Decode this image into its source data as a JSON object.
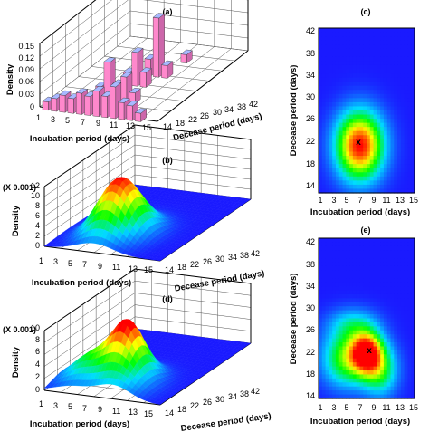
{
  "panels": {
    "a": {
      "title": "(a)",
      "ylabel": "Density",
      "xlabel": "Incubation period (days)",
      "zlabel": "Decease period (days)",
      "yticks": [
        "0",
        "0.03",
        "0.06",
        "0.09",
        "0.12",
        "0.15"
      ],
      "xticks": [
        "1",
        "3",
        "5",
        "7",
        "9",
        "11",
        "13",
        "15"
      ],
      "zticks": [
        "14",
        "18",
        "22",
        "26",
        "30",
        "34",
        "38",
        "42"
      ]
    },
    "b": {
      "title": "(b)",
      "scale": "(X 0.001)",
      "ylabel": "Density",
      "xlabel": "Incubation period (days)",
      "zlabel": "Decease period (days)",
      "yticks": [
        "0",
        "2",
        "4",
        "6",
        "8",
        "10",
        "12"
      ],
      "xticks": [
        "1",
        "3",
        "5",
        "7",
        "9",
        "11",
        "13",
        "15"
      ],
      "zticks": [
        "14",
        "18",
        "22",
        "26",
        "30",
        "34",
        "38",
        "42"
      ]
    },
    "c": {
      "title": "(c)",
      "xlabel": "Incubation period (days)",
      "ylabel": "Decease period (days)",
      "xticks": [
        "1",
        "3",
        "5",
        "7",
        "9",
        "11",
        "13",
        "15"
      ],
      "yticks": [
        "14",
        "18",
        "22",
        "26",
        "30",
        "34",
        "38",
        "42"
      ],
      "marker": "x"
    },
    "d": {
      "title": "(d)",
      "scale": "(X 0.001)",
      "ylabel": "Density",
      "xlabel": "Incubation period (days)",
      "zlabel": "Decease period (days)",
      "yticks": [
        "0",
        "2",
        "4",
        "6",
        "8",
        "10"
      ],
      "xticks": [
        "1",
        "3",
        "5",
        "7",
        "9",
        "11",
        "13",
        "15"
      ],
      "zticks": [
        "14",
        "18",
        "22",
        "26",
        "30",
        "34",
        "38",
        "42"
      ]
    },
    "e": {
      "title": "(e)",
      "xlabel": "Incubation period (days)",
      "ylabel": "Decease period (days)",
      "xticks": [
        "1",
        "3",
        "5",
        "7",
        "9",
        "11",
        "13",
        "15"
      ],
      "yticks": [
        "14",
        "18",
        "22",
        "26",
        "30",
        "34",
        "38",
        "42"
      ],
      "marker": "x"
    }
  },
  "colors": {
    "heat_low": "#1a1aff",
    "heat_mid": "#00ff00",
    "heat_high": "#ff0000",
    "bar_top": "#a8b8ff",
    "bar_side": "#ff88cc"
  },
  "chart_data": [
    {
      "type": "bar",
      "panel": "a",
      "title": "",
      "xlabel": "Incubation period (days)",
      "ylabel": "Density",
      "zlabel": "Decease period (days)",
      "ylim": [
        0,
        0.15
      ],
      "bars": [
        {
          "incubation": 2,
          "decease": 14,
          "density": 0.02
        },
        {
          "incubation": 3,
          "decease": 14,
          "density": 0.03
        },
        {
          "incubation": 4,
          "decease": 14,
          "density": 0.04
        },
        {
          "incubation": 5,
          "decease": 14,
          "density": 0.035
        },
        {
          "incubation": 6,
          "decease": 14,
          "density": 0.05
        },
        {
          "incubation": 7,
          "decease": 14,
          "density": 0.045
        },
        {
          "incubation": 8,
          "decease": 14,
          "density": 0.06
        },
        {
          "incubation": 9,
          "decease": 14,
          "density": 0.05
        },
        {
          "incubation": 10,
          "decease": 14,
          "density": 0.075
        },
        {
          "incubation": 11,
          "decease": 14,
          "density": 0.04
        },
        {
          "incubation": 12,
          "decease": 14,
          "density": 0.035
        },
        {
          "incubation": 13,
          "decease": 14,
          "density": 0.02
        },
        {
          "incubation": 6,
          "decease": 20,
          "density": 0.03
        },
        {
          "incubation": 7,
          "decease": 20,
          "density": 0.09
        },
        {
          "incubation": 8,
          "decease": 20,
          "density": 0.04
        },
        {
          "incubation": 9,
          "decease": 20,
          "density": 0.06
        },
        {
          "incubation": 10,
          "decease": 20,
          "density": 0.025
        },
        {
          "incubation": 7,
          "decease": 26,
          "density": 0.03
        },
        {
          "incubation": 8,
          "decease": 26,
          "density": 0.08
        },
        {
          "incubation": 9,
          "decease": 26,
          "density": 0.035
        },
        {
          "incubation": 8,
          "decease": 30,
          "density": 0.04
        },
        {
          "incubation": 9,
          "decease": 30,
          "density": 0.14
        },
        {
          "incubation": 10,
          "decease": 30,
          "density": 0.03
        },
        {
          "incubation": 10,
          "decease": 36,
          "density": 0.02
        }
      ]
    },
    {
      "type": "heatmap",
      "panel": "b",
      "title": "",
      "xlabel": "Incubation period (days)",
      "ylabel": "Density (X 0.001)",
      "zlabel": "Decease period (days)",
      "xlim": [
        1,
        15
      ],
      "ylim": [
        14,
        42
      ],
      "zlim": [
        0,
        12
      ],
      "peak": {
        "incubation": 7,
        "decease": 22,
        "density": 11.5
      }
    },
    {
      "type": "heatmap",
      "panel": "c",
      "title": "",
      "xlabel": "Incubation period (days)",
      "ylabel": "Decease period (days)",
      "xlim": [
        1,
        15
      ],
      "ylim": [
        14,
        42
      ],
      "peak": {
        "incubation": 7,
        "decease": 22
      }
    },
    {
      "type": "heatmap",
      "panel": "d",
      "title": "",
      "xlabel": "Incubation period (days)",
      "ylabel": "Density (X 0.001)",
      "zlabel": "Decease period (days)",
      "xlim": [
        1,
        15
      ],
      "ylim": [
        14,
        42
      ],
      "zlim": [
        0,
        10
      ],
      "peak": {
        "incubation": 8,
        "decease": 22,
        "density": 9.5
      }
    },
    {
      "type": "heatmap",
      "panel": "e",
      "title": "",
      "xlabel": "Incubation period (days)",
      "ylabel": "Decease period (days)",
      "xlim": [
        1,
        15
      ],
      "ylim": [
        14,
        42
      ],
      "peak": {
        "incubation": 8,
        "decease": 22
      }
    }
  ]
}
